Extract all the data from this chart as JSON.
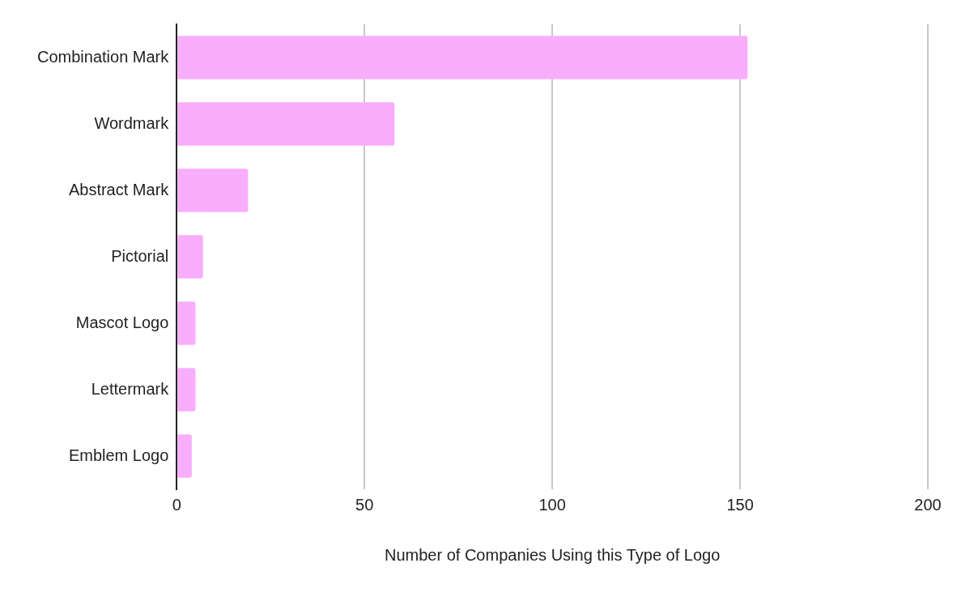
{
  "chart_data": {
    "type": "bar",
    "orientation": "horizontal",
    "xlabel": "Number of Companies Using this Type of Logo",
    "categories": [
      "Combination Mark",
      "Wordmark",
      "Abstract Mark",
      "Pictorial",
      "Mascot Logo",
      "Lettermark",
      "Emblem Logo"
    ],
    "values": [
      152,
      58,
      19,
      7,
      5,
      5,
      4
    ],
    "color": "#f8aefc",
    "xlim": [
      0,
      200
    ],
    "xticks": [
      0,
      50,
      100,
      150,
      200
    ],
    "grid": "x",
    "legend": false
  }
}
